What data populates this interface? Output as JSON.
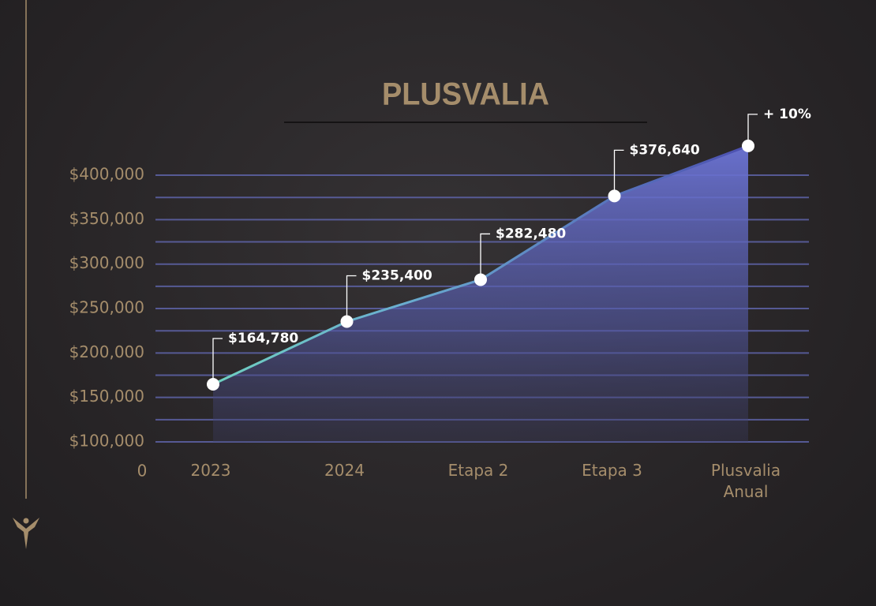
{
  "chart_data": {
    "type": "area",
    "title": "PLUSVALIA",
    "categories": [
      "2023",
      "2024",
      "Etapa 2",
      "Etapa 3",
      "Plusvalia Anual"
    ],
    "series": [
      {
        "name": "Plusvalia",
        "color": "#6f78d8",
        "values": [
          164780,
          235400,
          282480,
          376640,
          433000
        ],
        "value_labels": [
          "$164,780",
          "$235,400",
          "$282,480",
          "$376,640",
          null
        ]
      }
    ],
    "annotation": "+ 10%",
    "origin_label": "0",
    "ylim": [
      100000,
      440000
    ],
    "yticks": [
      {
        "value": 100000,
        "label": "$100,000"
      },
      {
        "value": 150000,
        "label": "$150,000"
      },
      {
        "value": 200000,
        "label": "$200,000"
      },
      {
        "value": 250000,
        "label": "$250,000"
      },
      {
        "value": 300000,
        "label": "$300,000"
      },
      {
        "value": 350000,
        "label": "$350,000"
      },
      {
        "value": 400000,
        "label": "$400,000"
      }
    ],
    "minor_yticks": [
      125000,
      175000,
      225000,
      275000,
      325000,
      375000
    ],
    "grid": true
  }
}
